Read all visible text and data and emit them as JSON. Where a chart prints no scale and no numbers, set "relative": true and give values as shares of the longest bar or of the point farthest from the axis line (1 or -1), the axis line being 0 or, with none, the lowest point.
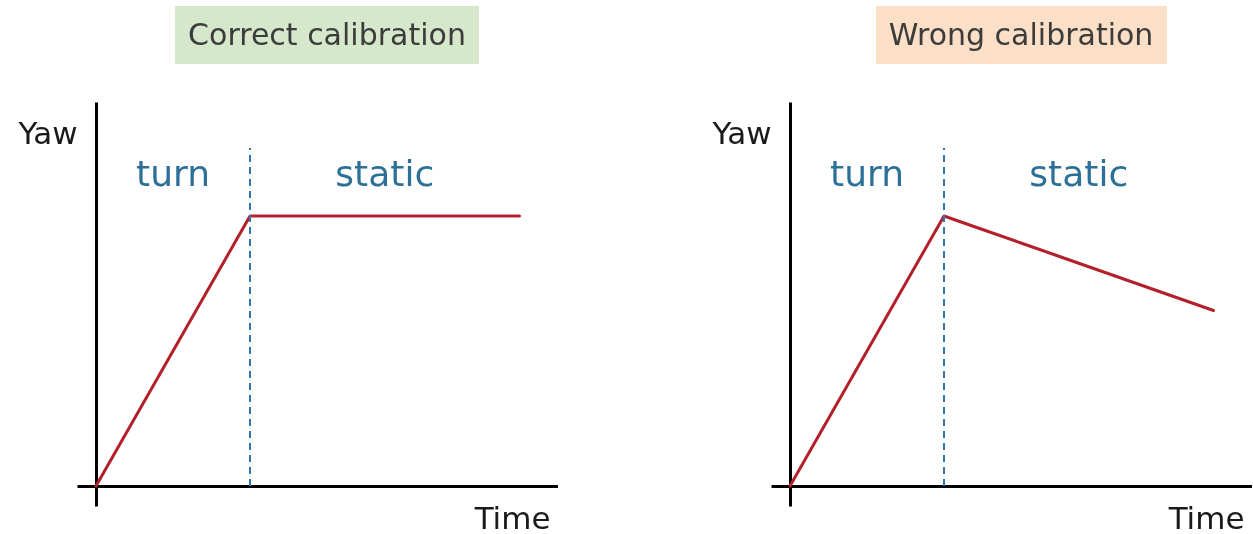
{
  "chart_data": [
    {
      "type": "line",
      "title": "Correct calibration",
      "xlabel": "Time",
      "ylabel": "Yaw",
      "relative": true,
      "categories": [
        null,
        null,
        null,
        null,
        null,
        null,
        null,
        null,
        null,
        null,
        null,
        null
      ],
      "series": [
        {
          "color": "#b3202a",
          "values": [
            0,
            0.25,
            0.5,
            0.75,
            1,
            1,
            1,
            1,
            1,
            1,
            1,
            1
          ]
        }
      ],
      "annotations": [
        "turn",
        "static"
      ]
    },
    {
      "type": "line",
      "title": "Wrong calibration",
      "xlabel": "Time",
      "ylabel": "Yaw",
      "relative": true,
      "categories": [
        null,
        null,
        null,
        null,
        null,
        null,
        null,
        null,
        null,
        null,
        null,
        null
      ],
      "series": [
        {
          "color": "#b3202a",
          "values": [
            0,
            0.25,
            0.5,
            0.75,
            1,
            0.95,
            0.9,
            0.85,
            0.8,
            0.75,
            0.7,
            0.65
          ]
        }
      ],
      "annotations": [
        "turn",
        "static"
      ]
    }
  ]
}
